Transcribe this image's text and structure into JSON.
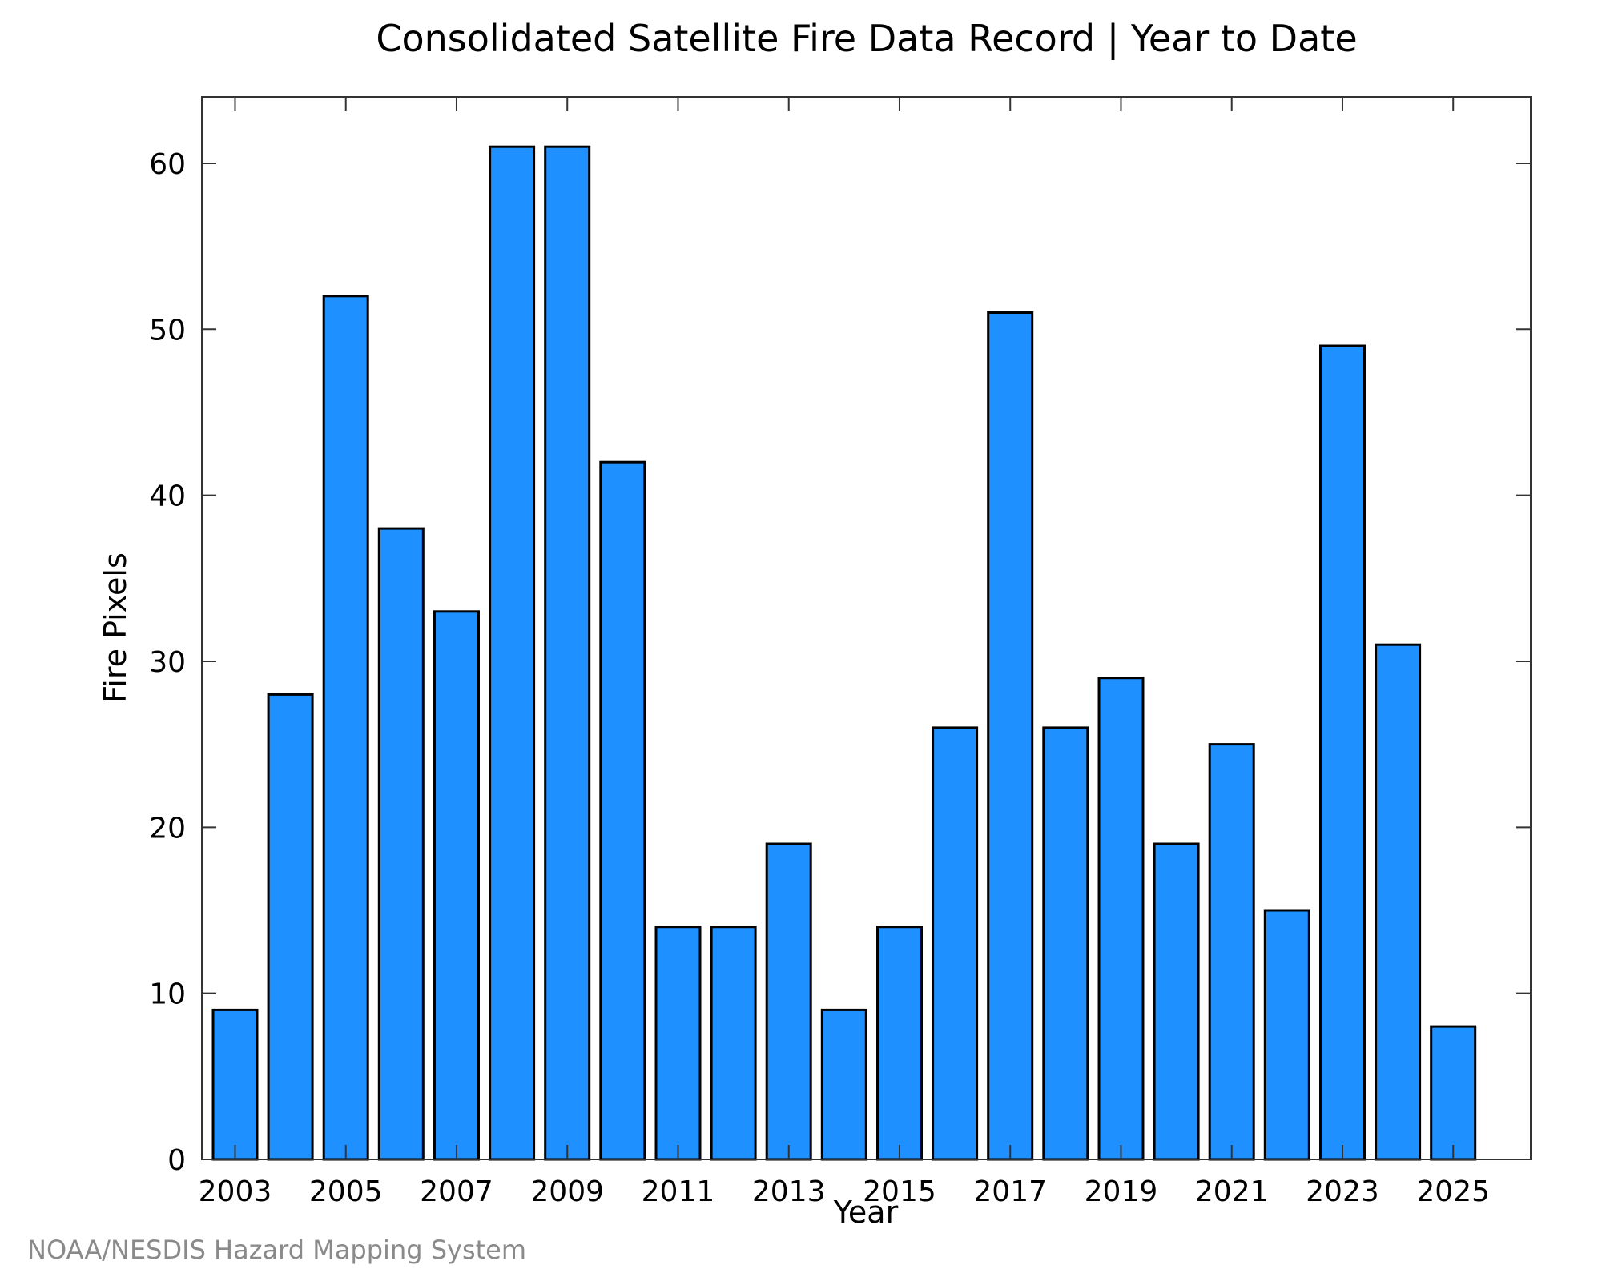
{
  "chart_data": {
    "type": "bar",
    "title": "Consolidated Satellite Fire Data Record | Year to Date",
    "xlabel": "Year",
    "ylabel": "Fire Pixels",
    "categories": [
      2003,
      2004,
      2005,
      2006,
      2007,
      2008,
      2009,
      2010,
      2011,
      2012,
      2013,
      2014,
      2015,
      2016,
      2017,
      2018,
      2019,
      2020,
      2021,
      2022,
      2023,
      2024,
      2025
    ],
    "values": [
      9,
      28,
      52,
      38,
      33,
      61,
      61,
      42,
      14,
      14,
      19,
      9,
      14,
      26,
      51,
      26,
      29,
      19,
      25,
      15,
      49,
      31,
      8
    ],
    "xticks": [
      "2003",
      "2005",
      "2007",
      "2009",
      "2011",
      "2013",
      "2015",
      "2017",
      "2019",
      "2021",
      "2023",
      "2025"
    ],
    "yticks": [
      "0",
      "10",
      "20",
      "30",
      "40",
      "50",
      "60"
    ],
    "ylim": [
      0,
      64
    ],
    "xlim": [
      2002.4,
      2026.4
    ],
    "grid": false,
    "bar_color": "#1e90ff",
    "edge_color": "#000000",
    "source": "NOAA/NESDIS Hazard Mapping System"
  }
}
